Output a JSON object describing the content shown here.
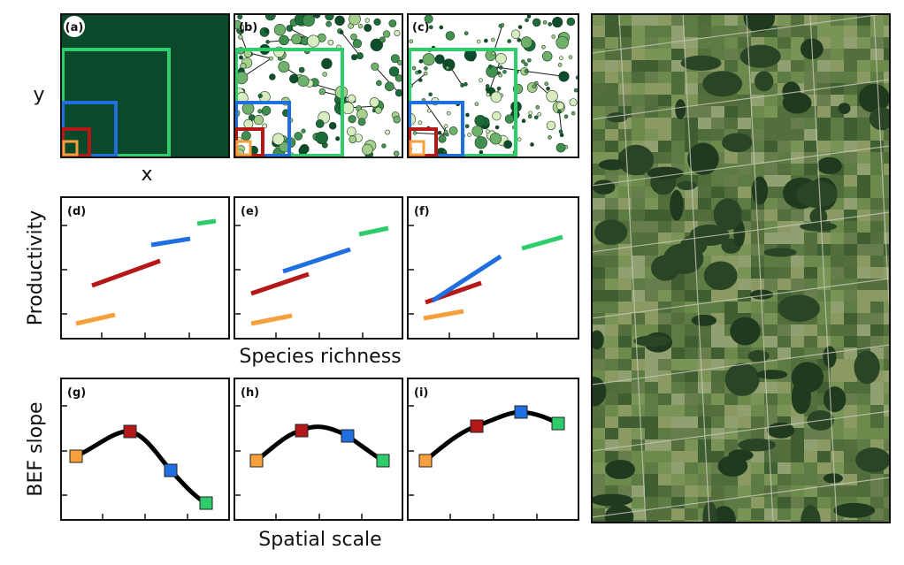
{
  "colors": {
    "orange": "#f5a03c",
    "red": "#b41818",
    "blue": "#1f6fe0",
    "green": "#2ecc6a",
    "dark_green": "#0a4a2a",
    "curve": "#000000"
  },
  "top_row": {
    "panels": [
      {
        "letter": "(a)"
      },
      {
        "letter": "(b)"
      },
      {
        "letter": "(c)"
      }
    ],
    "ylabel": "y",
    "xlabel": "x"
  },
  "middle_row": {
    "panels": [
      {
        "letter": "(d)"
      },
      {
        "letter": "(e)"
      },
      {
        "letter": "(f)"
      }
    ],
    "ylabel": "Productivity",
    "xlabel": "Species richness"
  },
  "bottom_row": {
    "panels": [
      {
        "letter": "(g)"
      },
      {
        "letter": "(h)"
      },
      {
        "letter": "(i)"
      }
    ],
    "ylabel": "BEF slope",
    "xlabel": "Spatial scale"
  },
  "map_icon": "satellite-landscape-image"
}
